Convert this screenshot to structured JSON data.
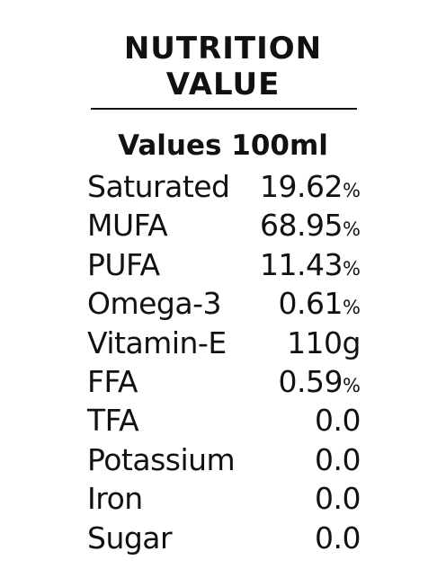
{
  "header": {
    "title_line1": "NUTRITION",
    "title_line2": "VALUE"
  },
  "subtitle": "Values 100ml",
  "nutrients": [
    {
      "label": "Saturated",
      "value": "19.62",
      "unit": "%"
    },
    {
      "label": "MUFA",
      "value": "68.95",
      "unit": "%"
    },
    {
      "label": "PUFA",
      "value": "11.43",
      "unit": "%"
    },
    {
      "label": "Omega-3",
      "value": "0.61",
      "unit": "%"
    },
    {
      "label": "Vitamin-E",
      "value": "110g",
      "unit": ""
    },
    {
      "label": "FFA",
      "value": "0.59",
      "unit": "%"
    },
    {
      "label": "TFA",
      "value": "0.0",
      "unit": ""
    },
    {
      "label": "Potassium",
      "value": "0.0",
      "unit": ""
    },
    {
      "label": "Iron",
      "value": "0.0",
      "unit": ""
    },
    {
      "label": "Sugar",
      "value": "0.0",
      "unit": ""
    }
  ]
}
